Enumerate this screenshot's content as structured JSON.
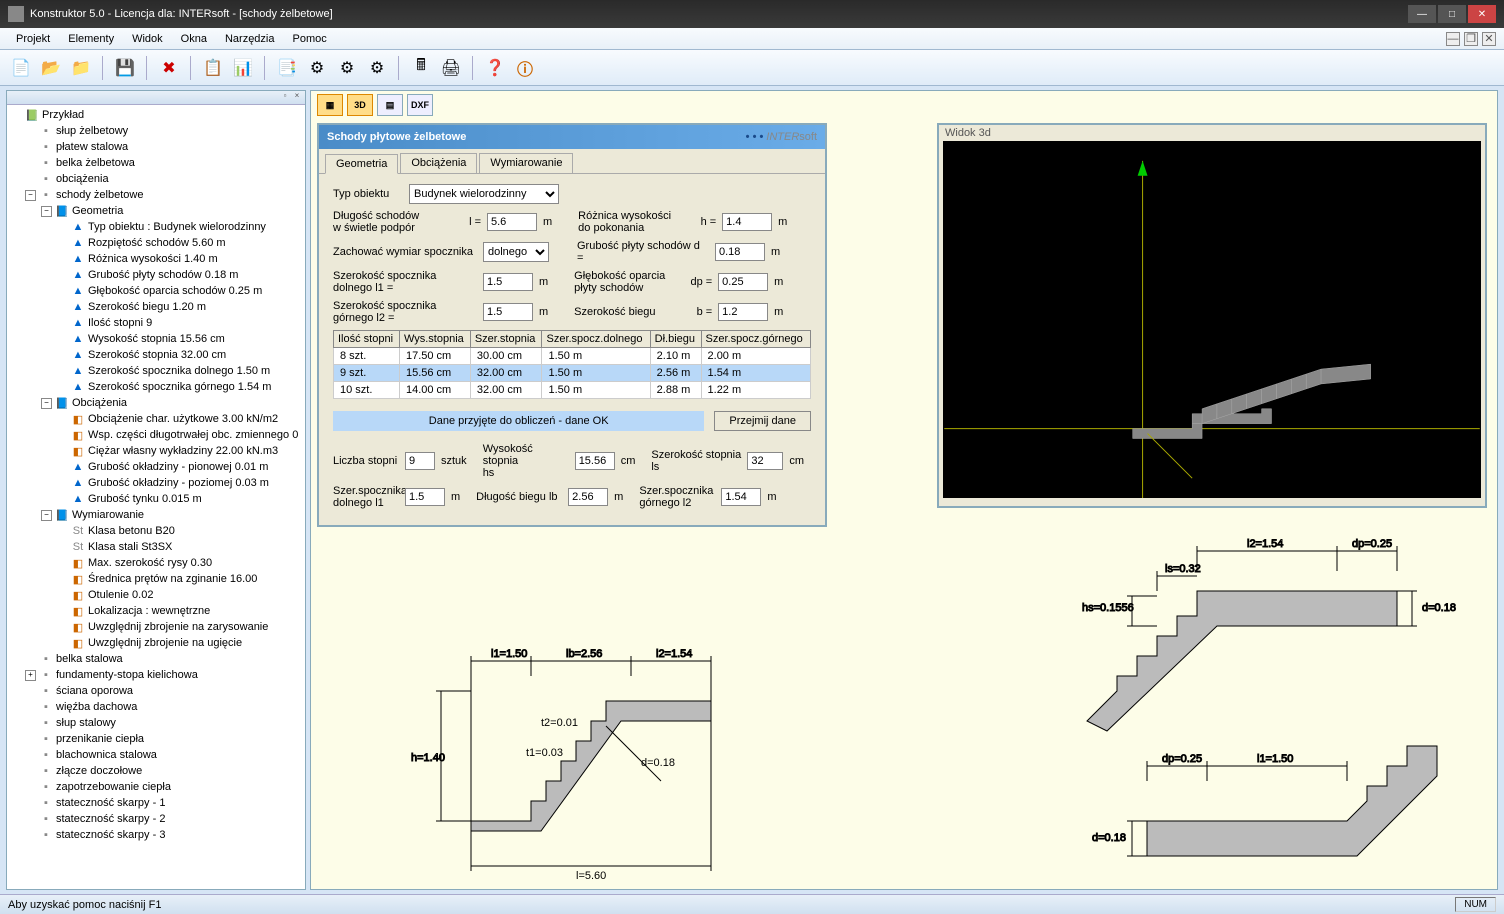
{
  "titlebar": {
    "text": "Konstruktor 5.0 - Licencja dla: INTERsoft - [schody żelbetowe]"
  },
  "menu": {
    "projekt": "Projekt",
    "elementy": "Elementy",
    "widok": "Widok",
    "okna": "Okna",
    "narzedzia": "Narzędzia",
    "pomoc": "Pomoc"
  },
  "tree": {
    "root": "Przykład",
    "items": [
      "słup żelbetowy",
      "płatew stalowa",
      "belka żelbetowa",
      "obciążenia",
      "schody żelbetowe"
    ],
    "geometria": "Geometria",
    "geom_items": [
      "Typ obiektu : Budynek wielorodzinny",
      "Rozpiętość schodów 5.60 m",
      "Różnica wysokości 1.40 m",
      "Grubość płyty schodów 0.18 m",
      "Głębokość oparcia schodów 0.25 m",
      "Szerokość biegu 1.20 m",
      "Ilość stopni 9",
      "Wysokość stopnia 15.56 cm",
      "Szerokość stopnia 32.00 cm",
      "Szerokość spocznika dolnego 1.50 m",
      "Szerokość spocznika górnego 1.54 m"
    ],
    "obciazenia": "Obciążenia",
    "obc_items": [
      "Obciążenie char. użytkowe 3.00 kN/m2",
      "Wsp. części długotrwałej obc. zmiennego 0",
      "Ciężar własny wykładziny 22.00 kN.m3",
      "Grubość okładziny - pionowej 0.01 m",
      "Grubość okładziny - poziomej 0.03 m",
      "Grubość tynku 0.015 m"
    ],
    "wymiarowanie": "Wymiarowanie",
    "wym_items": [
      "Klasa betonu B20",
      "Klasa stali St3SX",
      "Max. szerokość rysy 0.30",
      "Średnica prętów na zginanie 16.00",
      "Otulenie 0.02",
      "Lokalizacja : wewnętrzne",
      "Uwzględnij zbrojenie na zarysowanie",
      "Uwzględnij zbrojenie na ugięcie"
    ],
    "rest": [
      "belka stalowa",
      "fundamenty-stopa kielichowa",
      "ściana oporowa",
      "więźba dachowa",
      "słup stalowy",
      "przenikanie ciepła",
      "blachownica stalowa",
      "złącze doczołowe",
      "zapotrzebowanie ciepła",
      "stateczność skarpy - 1",
      "stateczność skarpy - 2",
      "stateczność skarpy - 3"
    ]
  },
  "content_toolbar": {
    "btn3d": "3D",
    "btndxf": "DXF"
  },
  "form": {
    "title": "Schody płytowe żelbetowe",
    "brand": "INTER",
    "brand2": "soft",
    "tabs": {
      "geometria": "Geometria",
      "obciazenia": "Obciążenia",
      "wymiarowanie": "Wymiarowanie"
    },
    "typ_label": "Typ obiektu",
    "typ_value": "Budynek wielorodzinny",
    "dlugosc_label": "Długość schodów\nw świetle podpór",
    "dlugosc_sym": "l =",
    "dlugosc_val": "5.6",
    "unit_m": "m",
    "roznica_label": "Różnica wysokości\ndo pokonania",
    "roznica_sym": "h =",
    "roznica_val": "1.4",
    "zachowac_label": "Zachować wymiar spocznika",
    "zachowac_val": "dolnego",
    "grubosc_label": "Grubość płyty schodów d =",
    "grubosc_val": "0.18",
    "szer_dol_label": "Szerokość spocznika dolnego l1 =",
    "szer_dol_val": "1.5",
    "glebokosc_label": "Głębokość oparcia\npłyty schodów",
    "glebokosc_sym": "dp =",
    "glebokosc_val": "0.25",
    "szer_gor_label": "Szerokość spocznika górnego l2 =",
    "szer_gor_val": "1.5",
    "szer_biegu_label": "Szerokość biegu",
    "szer_biegu_sym": "b =",
    "szer_biegu_val": "1.2",
    "table": {
      "headers": [
        "Ilość stopni",
        "Wys.stopnia",
        "Szer.stopnia",
        "Szer.spocz.dolnego",
        "Dł.biegu",
        "Szer.spocz.górnego"
      ],
      "rows": [
        [
          "8 szt.",
          "17.50 cm",
          "30.00 cm",
          "1.50 m",
          "2.10 m",
          "2.00 m"
        ],
        [
          "9 szt.",
          "15.56 cm",
          "32.00 cm",
          "1.50 m",
          "2.56 m",
          "1.54 m"
        ],
        [
          "10 szt.",
          "14.00 cm",
          "32.00 cm",
          "1.50 m",
          "2.88 m",
          "1.22 m"
        ]
      ]
    },
    "status_ok": "Dane przyjęte do obliczeń - dane OK",
    "przejmij": "Przejmij dane",
    "liczba_label": "Liczba stopni",
    "liczba_val": "9",
    "sztuk": "sztuk",
    "wys_label": "Wysokość stopnia\nhs",
    "wys_val": "15.56",
    "unit_cm": "cm",
    "szers_label": "Szerokość stopnia\nls",
    "szers_val": "32",
    "szer_sp_dol_label": "Szer.spocznika\ndolnego l1",
    "szer_sp_dol_val": "1.5",
    "dl_biegu_label": "Długość biegu lb",
    "dl_biegu_val": "2.56",
    "szer_sp_gor_label": "Szer.spocznika\ngórnego l2",
    "szer_sp_gor_val": "1.54"
  },
  "view3d": {
    "title": "Widok 3d"
  },
  "diagram1": {
    "l1": "l1=1.50",
    "lb": "lb=2.56",
    "l2": "l2=1.54",
    "h": "h=1.40",
    "t1": "t1=0.03",
    "t2": "t2=0.01",
    "d": "d=0.18",
    "l": "l=5.60"
  },
  "diagram2": {
    "l2": "l2=1.54",
    "dp": "dp=0.25",
    "ls": "ls=0.32",
    "hs": "hs=0.1556",
    "d": "d=0.18",
    "dp2": "dp=0.25",
    "l1": "l1=1.50",
    "d2": "d=0.18"
  },
  "statusbar": {
    "help": "Aby uzyskać pomoc naciśnij F1",
    "num": "NUM"
  }
}
